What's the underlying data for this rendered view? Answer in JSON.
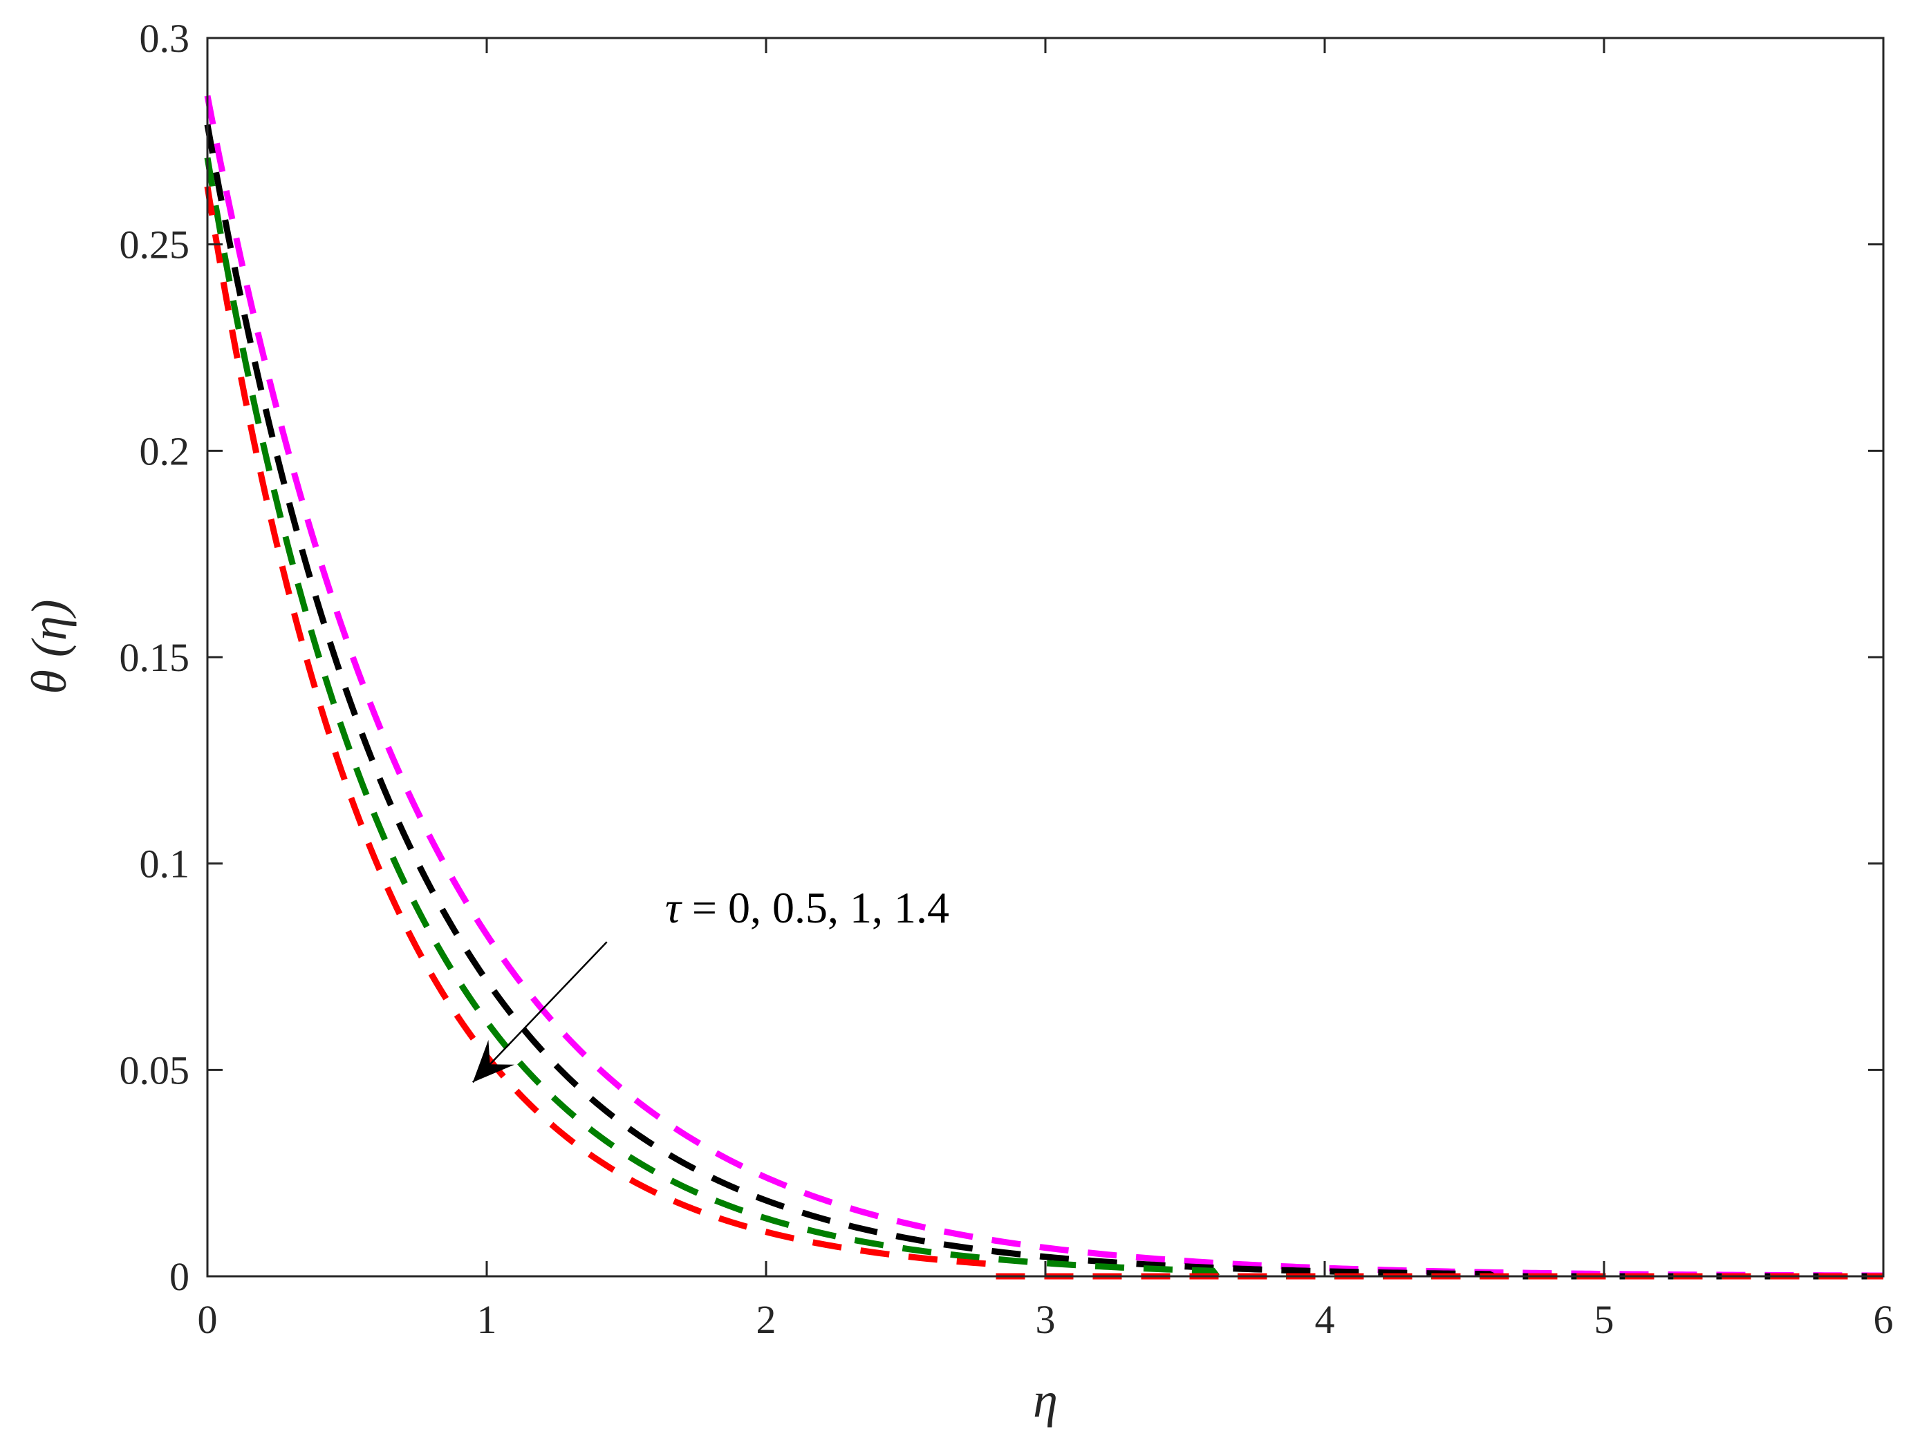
{
  "chart_data": {
    "type": "line",
    "xlabel": "η",
    "ylabel": "θ (η)",
    "xlim": [
      0,
      6
    ],
    "ylim": [
      0,
      0.3
    ],
    "xticks": [
      0,
      1,
      2,
      3,
      4,
      5,
      6
    ],
    "yticks": [
      0,
      0.05,
      0.1,
      0.15,
      0.2,
      0.25,
      0.3
    ],
    "xtick_labels": [
      "0",
      "1",
      "2",
      "3",
      "4",
      "5",
      "6"
    ],
    "ytick_labels": [
      "0",
      "0.05",
      "0.1",
      "0.15",
      "0.2",
      "0.25",
      "0.3"
    ],
    "grid": false,
    "line_style": "dashed",
    "annotation": {
      "symbol": "τ",
      "text": " = 0, 0.5, 1, 1.4",
      "arrow_from": [
        1.43,
        0.081
      ],
      "arrow_to": [
        0.95,
        0.047
      ]
    },
    "series": [
      {
        "color": "#ff00ff",
        "theta0": 0.286,
        "decay": 1.24,
        "cutoff": 6.0
      },
      {
        "color": "#000000",
        "theta0": 0.279,
        "decay": 1.36,
        "cutoff": 4.6
      },
      {
        "color": "#007f00",
        "theta0": 0.271,
        "decay": 1.48,
        "cutoff": 3.6
      },
      {
        "color": "#ff0000",
        "theta0": 0.264,
        "decay": 1.6,
        "cutoff": 2.8
      }
    ]
  }
}
